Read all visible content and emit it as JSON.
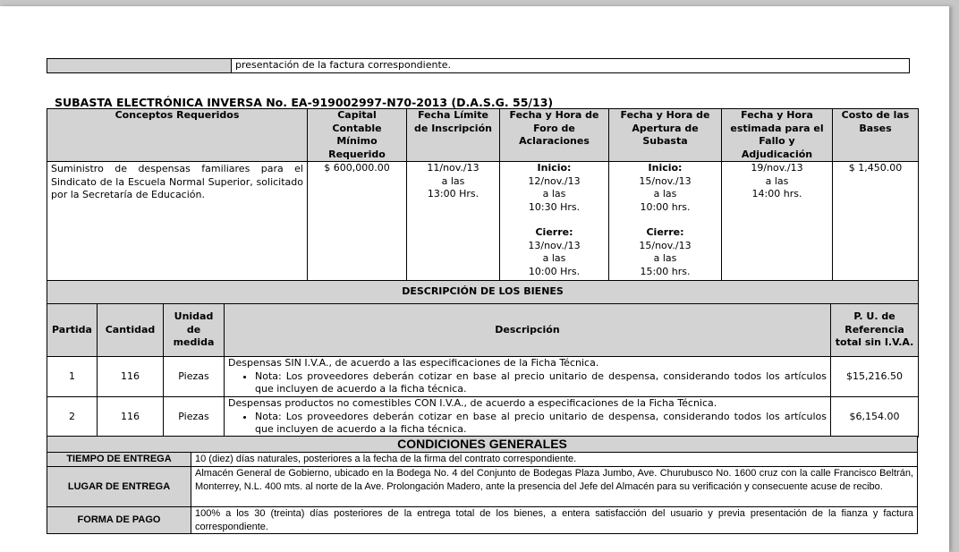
{
  "top_row": {
    "text": "presentación de la factura correspondiente."
  },
  "title": "SUBASTA ELECTRÓNICA INVERSA No. EA-919002997-N70-2013 (D.A.S.G. 55/13)",
  "main_table": {
    "headers": [
      "Conceptos Requeridos",
      "Capital Contable Mínimo Requerido",
      "Fecha Límite de Inscripción",
      "Fecha y Hora de Foro de Aclaraciones",
      "Fecha y Hora de Apertura de Subasta",
      "Fecha y Hora estimada para el Fallo y Adjudicación",
      "Costo de las Bases"
    ],
    "row": {
      "concepto": "Suministro de despensas familiares para el Sindicato de la Escuela Normal Superior, solicitado por la Secretaría de Educación.",
      "capital": "$ 600,000.00",
      "limite": [
        "11/nov./13",
        "a las",
        "13:00 Hrs."
      ],
      "foro": {
        "inicio_label": "Inicio:",
        "inicio": [
          "12/nov./13",
          "a las",
          "10:30 Hrs."
        ],
        "cierre_label": "Cierre:",
        "cierre": [
          "13/nov./13",
          "a las",
          "10:00 Hrs."
        ]
      },
      "apertura": {
        "inicio_label": "Inicio:",
        "inicio": [
          "15/nov./13",
          "a las",
          "10:00 hrs."
        ],
        "cierre_label": "Cierre:",
        "cierre": [
          "15/nov./13",
          "a las",
          "15:00 hrs."
        ]
      },
      "fallo": [
        "19/nov./13",
        "a las",
        "14:00 hrs."
      ],
      "costo": "$ 1,450.00"
    }
  },
  "bienes": {
    "title": "DESCRIPCIÓN DE LOS BIENES",
    "headers": [
      "Partida",
      "Cantidad",
      "Unidad de medida",
      "Descripción",
      "P. U. de Referencia total sin I.V.A."
    ],
    "rows": [
      {
        "partida": "1",
        "cantidad": "116",
        "unidad": "Piezas",
        "desc": "Despensas SIN I.V.A., de acuerdo a las especificaciones de la Ficha Técnica.",
        "nota": "Nota: Los proveedores deberán cotizar en base al precio unitario de despensa, considerando todos los artículos que incluyen de acuerdo a la ficha técnica.",
        "pu": "$15,216.50"
      },
      {
        "partida": "2",
        "cantidad": "116",
        "unidad": "Piezas",
        "desc": "Despensas productos no comestibles CON I.V.A., de acuerdo a especificaciones de la Ficha Técnica.",
        "nota": "Nota: Los proveedores deberán cotizar en base al precio unitario de despensa, considerando todos los artículos que incluyen de acuerdo a la ficha técnica.",
        "pu": "$6,154.00"
      }
    ]
  },
  "condiciones": {
    "title": "CONDICIONES GENERALES",
    "rows": [
      {
        "label": "TIEMPO DE ENTREGA",
        "text": "10 (diez) días naturales, posteriores a la fecha de la firma del contrato correspondiente."
      },
      {
        "label": "LUGAR DE ENTREGA",
        "text": "Almacén General de Gobierno, ubicado en la Bodega No. 4 del Conjunto de Bodegas Plaza Jumbo, Ave. Churubusco No. 1600 cruz con la calle Francisco Beltrán, Monterrey, N.L. 400 mts. al norte de la Ave. Prolongación Madero, ante la presencia del Jefe del Almacén para su verificación y consecuente acuse de recibo."
      },
      {
        "label": "FORMA DE PAGO",
        "text": "100% a los 30 (treinta)  días posteriores de la entrega total de los bienes, a entera satisfacción del usuario y previa presentación de la fianza y factura correspondiente."
      }
    ]
  }
}
